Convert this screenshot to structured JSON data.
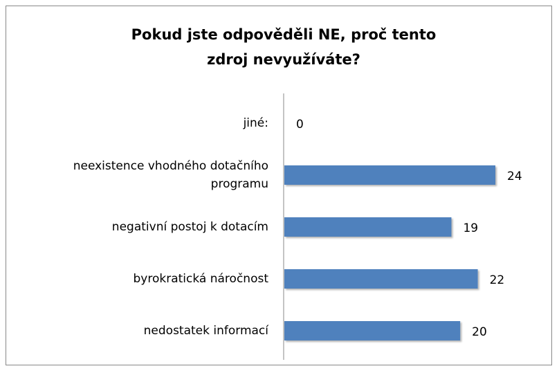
{
  "chart_data": {
    "type": "bar",
    "orientation": "horizontal",
    "title": "Pokud jste odpověděli NE, proč tento zdroj nevyužíváte?",
    "categories": [
      "jiné:",
      "neexistence vhodného dotačního programu",
      "negativní postoj k dotacím",
      "byrokratická náročnost",
      "nedostatek informací"
    ],
    "values": [
      0,
      24,
      19,
      22,
      20
    ],
    "color": "#4f81bd"
  }
}
